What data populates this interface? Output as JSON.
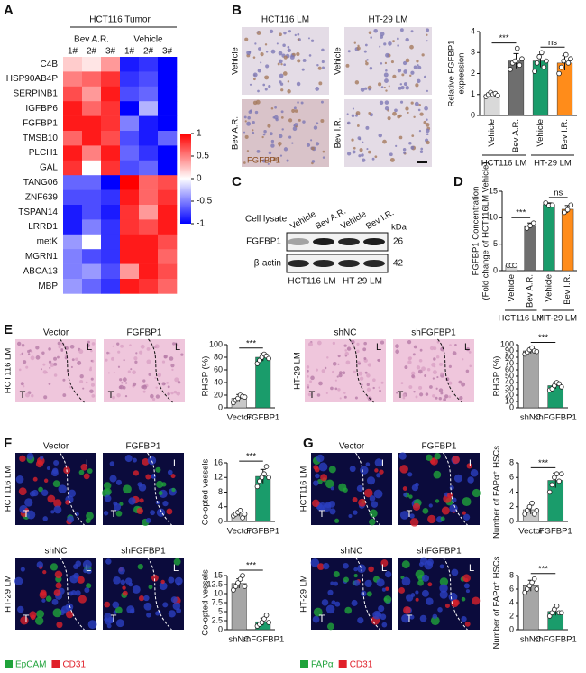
{
  "panel_letters": [
    "A",
    "B",
    "C",
    "D",
    "E",
    "F",
    "G"
  ],
  "region_labels": {
    "lung": "L",
    "tumor": "T"
  },
  "panel_b": {
    "columns": [
      "HCT116 LM",
      "HT-29 LM"
    ],
    "row_labels": [
      [
        "Vehicle",
        "Vehicle"
      ],
      [
        "Bev A.R.",
        "Bev I.R."
      ]
    ],
    "stain": "FGFBP1"
  },
  "panel_c": {
    "title": "Cell lysate",
    "lanes": [
      "Vehicle",
      "Bev A.R.",
      "Vehicle",
      "Bev I.R."
    ],
    "unit": "kDa",
    "bands": [
      {
        "name": "FGFBP1",
        "kda": 26
      },
      {
        "name": "β-actin",
        "kda": 42
      }
    ],
    "groups": [
      "HCT116 LM",
      "HT-29 LM"
    ]
  },
  "panel_e": [
    {
      "row": "HCT116 LM",
      "conditions": [
        "Vector",
        "FGFBP1"
      ]
    },
    {
      "row": "HT-29 LM",
      "conditions": [
        "shNC",
        "shFGFBP1"
      ]
    }
  ],
  "panel_f": {
    "rows": [
      {
        "row": "HCT116 LM",
        "conditions": [
          "Vector",
          "FGFBP1"
        ]
      },
      {
        "row": "HT-29 LM",
        "conditions": [
          "shNC",
          "shFGFBP1"
        ]
      }
    ],
    "legend": [
      {
        "name": "EpCAM",
        "color": "#1fa33a"
      },
      {
        "name": "CD31",
        "color": "#e0202a"
      }
    ]
  },
  "panel_g": {
    "rows": [
      {
        "row": "HCT116 LM",
        "conditions": [
          "Vector",
          "FGFBP1"
        ]
      },
      {
        "row": "HT-29 LM",
        "conditions": [
          "shNC",
          "shFGFBP1"
        ]
      }
    ],
    "legend": [
      {
        "name": "FAPα",
        "color": "#1fa33a"
      },
      {
        "name": "CD31",
        "color": "#e0202a"
      }
    ]
  },
  "chart_data": [
    {
      "type": "heatmap",
      "title": "HCT116 Tumor",
      "groups": [
        "Bev A.R.",
        "Vehicle"
      ],
      "columns": [
        "1#",
        "2#",
        "3#",
        "1#",
        "2#",
        "3#"
      ],
      "rows": [
        "C4B",
        "HSP90AB4P",
        "SERPINB1",
        "IGFBP6",
        "FGFBP1",
        "TMSB10",
        "PLCH1",
        "GAL",
        "TANG06",
        "ZNF639",
        "TSPAN14",
        "LRRD1",
        "metK",
        "MGRN1",
        "ABCA13",
        "MBP"
      ],
      "values": [
        [
          0.2,
          0.1,
          0.4,
          -0.9,
          -0.8,
          -1
        ],
        [
          0.5,
          0.6,
          0.8,
          -0.8,
          -0.7,
          -1
        ],
        [
          0.7,
          0.4,
          0.9,
          -0.7,
          -0.6,
          -1
        ],
        [
          0.9,
          0.6,
          0.8,
          -1,
          -0.3,
          -1
        ],
        [
          0.9,
          0.9,
          0.8,
          -0.5,
          -0.9,
          -1
        ],
        [
          0.6,
          0.9,
          0.7,
          -0.7,
          -0.9,
          -0.6
        ],
        [
          0.9,
          0.5,
          0.9,
          -0.6,
          -0.8,
          -1
        ],
        [
          0.8,
          0,
          0.8,
          -0.7,
          -0.6,
          -1
        ],
        [
          -0.6,
          -0.6,
          -1,
          1,
          0.6,
          0.7
        ],
        [
          -0.7,
          -0.7,
          -0.8,
          0.9,
          0.6,
          0.8
        ],
        [
          -0.9,
          -0.7,
          -0.9,
          0.8,
          0.4,
          0.9
        ],
        [
          -0.9,
          -0.5,
          -0.8,
          0.8,
          0.7,
          0.9
        ],
        [
          -0.4,
          0,
          -0.8,
          0.9,
          0.9,
          0.7
        ],
        [
          -0.5,
          -0.7,
          -0.8,
          0.9,
          0.9,
          0.6
        ],
        [
          -0.5,
          -0.4,
          -0.7,
          0.4,
          0.9,
          0.7
        ],
        [
          -0.4,
          -0.6,
          -0.8,
          0.9,
          0.8,
          0.6
        ]
      ],
      "clim": [
        -1,
        1
      ],
      "colorbar_ticks": [
        1,
        0.5,
        0,
        -0.5,
        -1
      ],
      "colors": [
        "#0000ff",
        "#ffffff",
        "#ff0000"
      ]
    },
    {
      "type": "bar",
      "ylabel": [
        "Relative FGFBP1",
        "expression"
      ],
      "categories": [
        "Vehicle",
        "Bev A.R.",
        "Vehicle",
        "Bev I.R."
      ],
      "values": [
        1,
        2.6,
        2.6,
        2.5
      ],
      "errors": [
        0.1,
        0.35,
        0.3,
        0.35
      ],
      "points": [
        [
          0.9,
          1,
          1.1,
          1,
          1.05,
          0.95
        ],
        [
          2.2,
          2.5,
          2.6,
          3.2,
          2.4,
          2.7
        ],
        [
          2.1,
          2.5,
          2.8,
          3.0,
          2.3,
          2.6
        ],
        [
          2.0,
          2.3,
          2.6,
          2.9,
          2.5,
          2.7
        ]
      ],
      "colors": [
        "#d9d9d9",
        "#6e6e6e",
        "#1a9c6b",
        "#ff8c1a"
      ],
      "groups": [
        "HCT116 LM",
        "HT-29 LM"
      ],
      "significance": [
        "***",
        "ns"
      ],
      "ylim": [
        0,
        4
      ],
      "yticks": [
        0,
        1,
        2,
        3,
        4
      ]
    },
    {
      "type": "bar",
      "ylabel": [
        "FGFBP1 Concentration",
        "(Fold change of HCT116LM Vehicle)"
      ],
      "categories": [
        "Vehicle",
        "Bev A.R.",
        "Vehicle",
        "Bev I.R."
      ],
      "values": [
        1,
        8.5,
        12.5,
        11.6
      ],
      "errors": [
        0.1,
        0.5,
        0.3,
        0.7
      ],
      "points": [
        [
          1,
          1,
          1
        ],
        [
          8,
          8.5,
          9
        ],
        [
          12.8,
          12.3,
          12.4
        ],
        [
          11,
          11.5,
          12.4
        ]
      ],
      "colors": [
        "#d9d9d9",
        "#6e6e6e",
        "#1a9c6b",
        "#ff8c1a"
      ],
      "groups": [
        "HCT116 LM",
        "HT-29 LM"
      ],
      "significance": [
        "***",
        "ns"
      ],
      "ylim": [
        0,
        15
      ],
      "yticks": [
        0,
        5,
        10,
        15
      ]
    },
    {
      "type": "bar",
      "ylabel": [
        "RHGP (%)"
      ],
      "categories": [
        "Vector",
        "FGFBP1"
      ],
      "values": [
        15,
        80
      ],
      "errors": [
        6,
        6
      ],
      "points": [
        [
          8,
          12,
          15,
          20,
          18,
          17
        ],
        [
          70,
          75,
          80,
          85,
          82,
          78
        ]
      ],
      "colors": [
        "#c8c8c8",
        "#1a9c6b"
      ],
      "significance": [
        "***"
      ],
      "ylim": [
        0,
        100
      ],
      "yticks": [
        0,
        20,
        40,
        60,
        80,
        100
      ]
    },
    {
      "type": "bar",
      "ylabel": [
        "RHGP (%)"
      ],
      "categories": [
        "shNC",
        "shFGFBP1"
      ],
      "values": [
        90,
        35
      ],
      "errors": [
        4,
        5
      ],
      "points": [
        [
          85,
          88,
          92,
          95,
          90,
          89
        ],
        [
          28,
          30,
          35,
          40,
          38,
          33
        ]
      ],
      "colors": [
        "#a6a6a6",
        "#1a9c6b"
      ],
      "significance": [
        "***"
      ],
      "ylim": [
        0,
        100
      ],
      "yticks": [
        0,
        10,
        20,
        30,
        40,
        50,
        60,
        70,
        80,
        90,
        100
      ]
    },
    {
      "type": "bar",
      "ylabel": [
        "Co-opted vessels"
      ],
      "categories": [
        "Vector",
        "FGFBP1"
      ],
      "values": [
        2,
        12.3
      ],
      "errors": [
        0.6,
        1.9
      ],
      "points": [
        [
          1.5,
          2,
          2.5,
          3,
          1,
          2
        ],
        [
          9.5,
          11,
          12,
          13,
          15,
          12
        ]
      ],
      "colors": [
        "#c8c8c8",
        "#1a9c6b"
      ],
      "significance": [
        "***"
      ],
      "ylim": [
        0,
        16
      ],
      "yticks": [
        0,
        4,
        8,
        12,
        16
      ]
    },
    {
      "type": "bar",
      "ylabel": [
        "Co-opted vessels"
      ],
      "categories": [
        "shNC",
        "shFGFBP1"
      ],
      "values": [
        12.8,
        2.2
      ],
      "errors": [
        1.3,
        1.0
      ],
      "points": [
        [
          11,
          12,
          13,
          14,
          15,
          12
        ],
        [
          1,
          1.5,
          2,
          3,
          4,
          2
        ]
      ],
      "colors": [
        "#a6a6a6",
        "#1a9c6b"
      ],
      "significance": [
        "***"
      ],
      "ylim": [
        0,
        15
      ],
      "yticks": [
        0,
        2.5,
        5,
        7.5,
        10,
        12.5,
        15
      ]
    },
    {
      "type": "bar",
      "ylabel": [
        "Number of FAPα⁺ HSCs"
      ],
      "categories": [
        "Vector",
        "FGFBP1"
      ],
      "values": [
        1.6,
        5.6
      ],
      "errors": [
        0.6,
        1
      ],
      "points": [
        [
          1,
          1.5,
          2,
          2.5,
          1,
          1.5
        ],
        [
          4,
          5,
          6,
          6.5,
          5.5,
          6.5
        ]
      ],
      "colors": [
        "#c8c8c8",
        "#1a9c6b"
      ],
      "significance": [
        "***"
      ],
      "ylim": [
        0,
        8
      ],
      "yticks": [
        0,
        2,
        4,
        6,
        8
      ]
    },
    {
      "type": "bar",
      "ylabel": [
        "Number of FAPα⁺ HSCs"
      ],
      "categories": [
        "shNC",
        "shFGFBP1"
      ],
      "values": [
        6.5,
        2.7
      ],
      "errors": [
        0.8,
        0.6
      ],
      "points": [
        [
          5.5,
          6,
          6.5,
          7,
          7.5,
          6
        ],
        [
          2,
          2.5,
          3,
          3.5,
          2.5,
          2.5
        ]
      ],
      "colors": [
        "#a6a6a6",
        "#1a9c6b"
      ],
      "significance": [
        "***"
      ],
      "ylim": [
        0,
        8
      ],
      "yticks": [
        0,
        2,
        4,
        6,
        8
      ]
    }
  ]
}
